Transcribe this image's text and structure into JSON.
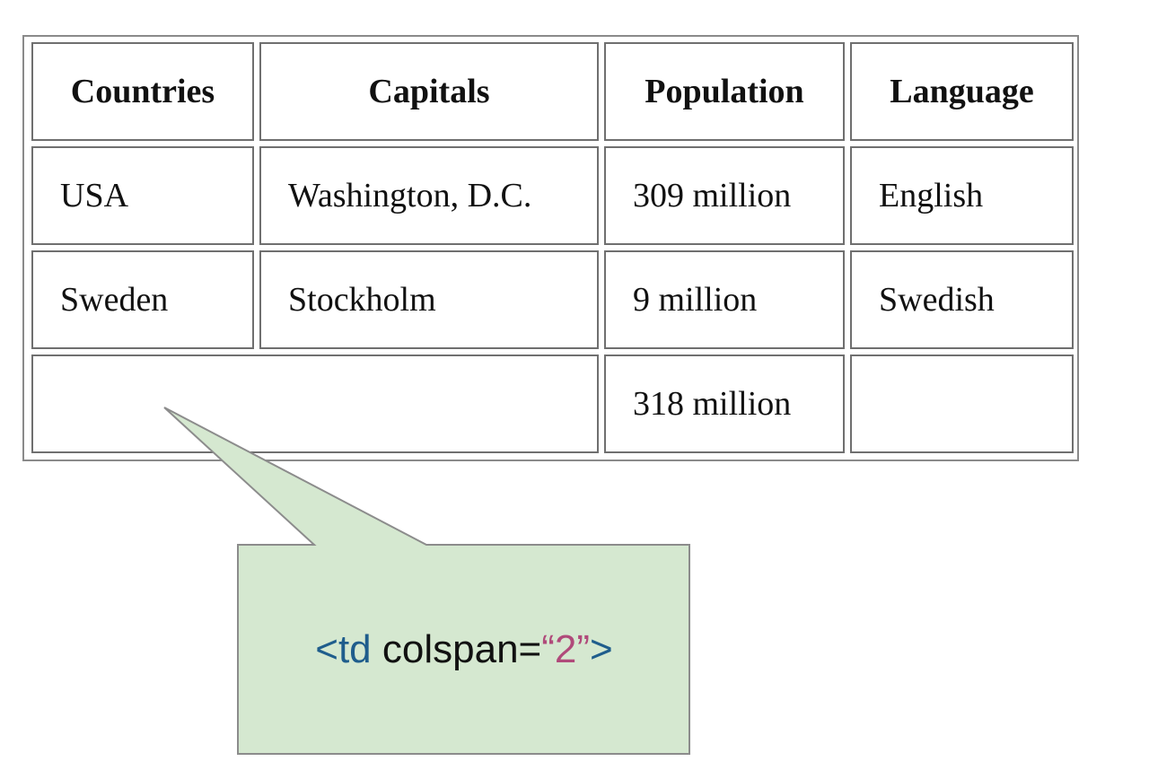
{
  "table": {
    "headers": [
      "Countries",
      "Capitals",
      "Population",
      "Language"
    ],
    "rows": [
      [
        "USA",
        "Washington, D.C.",
        "309 million",
        "English"
      ],
      [
        "Sweden",
        "Stockholm",
        "9 million",
        "Swedish"
      ]
    ],
    "footer": {
      "merged": "",
      "population": "318 million",
      "language": ""
    }
  },
  "callout": {
    "tag_open": "<td",
    "attr": " colspan=",
    "value": "“2”",
    "tag_close": ">",
    "fill_color": "#d5e8d0",
    "border_color": "#8c8c8c"
  }
}
